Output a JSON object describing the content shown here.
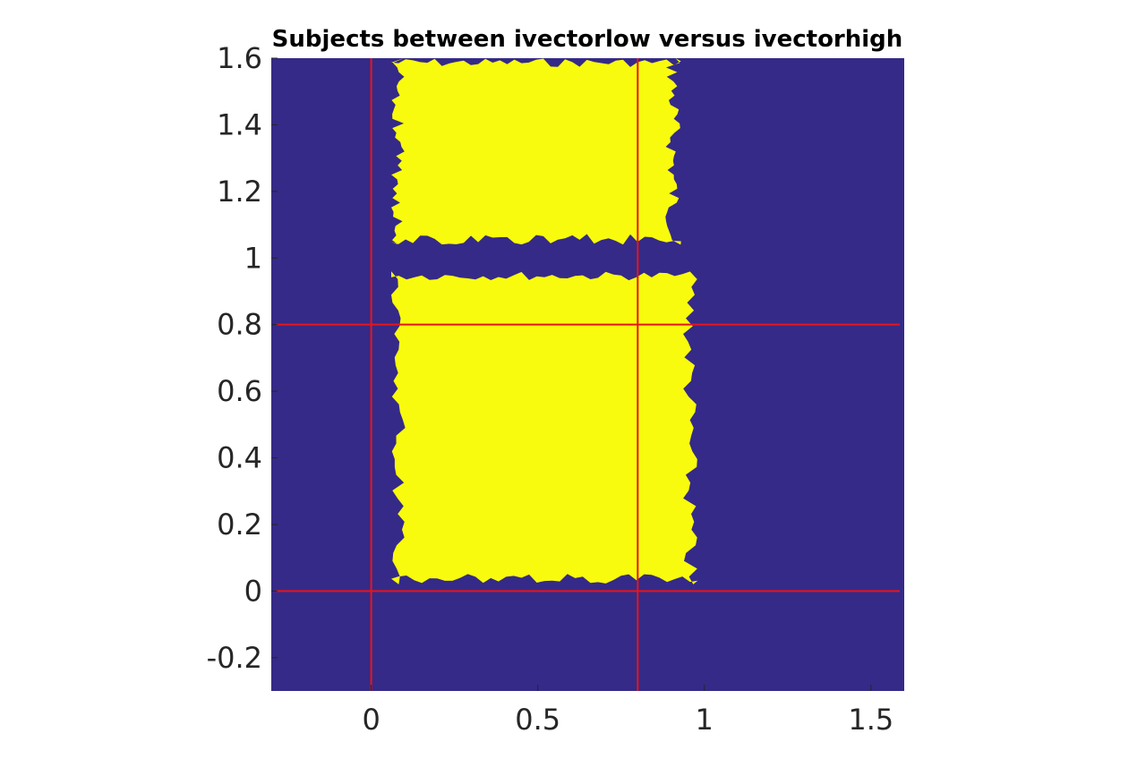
{
  "chart_data": {
    "type": "heatmap",
    "title": "Subjects between ivectorlow versus ivectorhigh",
    "xlabel": "",
    "ylabel": "",
    "xlim": [
      -0.3,
      1.6
    ],
    "ylim": [
      -0.3,
      1.6
    ],
    "x_ticks": [
      {
        "value": 0,
        "label": "0"
      },
      {
        "value": 0.5,
        "label": "0.5"
      },
      {
        "value": 1,
        "label": "1"
      },
      {
        "value": 1.5,
        "label": "1.5"
      }
    ],
    "y_ticks": [
      {
        "value": -0.2,
        "label": "-0.2"
      },
      {
        "value": 0,
        "label": "0"
      },
      {
        "value": 0.2,
        "label": "0.2"
      },
      {
        "value": 0.4,
        "label": "0.4"
      },
      {
        "value": 0.6,
        "label": "0.6"
      },
      {
        "value": 0.8,
        "label": "0.8"
      },
      {
        "value": 1,
        "label": "1"
      },
      {
        "value": 1.2,
        "label": "1.2"
      },
      {
        "value": 1.4,
        "label": "1.4"
      },
      {
        "value": 1.6,
        "label": "1.6"
      }
    ],
    "grid": false,
    "colors": {
      "background": "#352a87",
      "region": "#f9fb0e",
      "reference_lines": "#e8141c"
    },
    "reference_lines": {
      "vertical": [
        0,
        0.8
      ],
      "horizontal": [
        0,
        0.8
      ]
    },
    "regions": [
      {
        "name": "upper-region",
        "x": [
          0.06,
          0.93
        ],
        "y": [
          1.04,
          1.6
        ]
      },
      {
        "name": "lower-region",
        "x": [
          0.06,
          0.98
        ],
        "y": [
          0.02,
          0.96
        ]
      }
    ],
    "gap_between_regions_y": [
      0.96,
      1.04
    ]
  }
}
